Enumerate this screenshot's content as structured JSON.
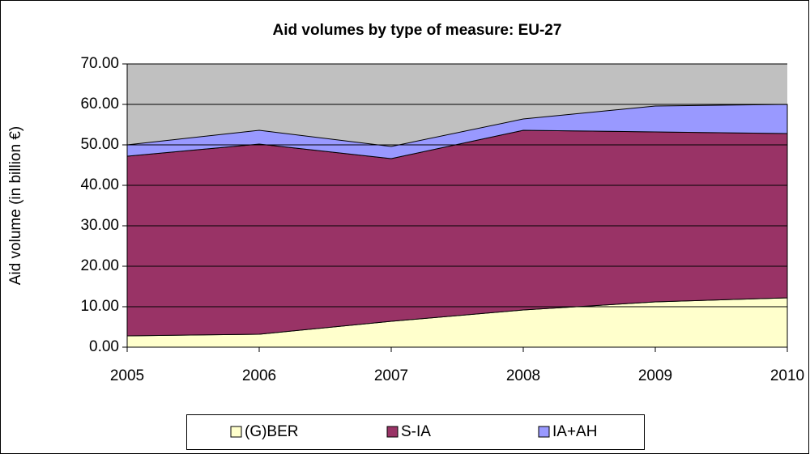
{
  "chart_data": {
    "type": "stacked_area",
    "title": "Aid volumes by type of measure: EU-27",
    "y_label": "Aid volume (in billion €)",
    "x": [
      2005,
      2006,
      2007,
      2008,
      2009,
      2010
    ],
    "xlim": [
      2005,
      2010
    ],
    "xticks": [
      2005,
      2006,
      2007,
      2008,
      2009,
      2010
    ],
    "ylim": [
      0,
      70
    ],
    "yticks": [
      {
        "value": 0,
        "label": "0.00"
      },
      {
        "value": 10,
        "label": "10.00"
      },
      {
        "value": 20,
        "label": "20.00"
      },
      {
        "value": 30,
        "label": "30.00"
      },
      {
        "value": 40,
        "label": "40.00"
      },
      {
        "value": 50,
        "label": "50.00"
      },
      {
        "value": 60,
        "label": "60.00"
      },
      {
        "value": 70,
        "label": "70.00"
      }
    ],
    "grid": true,
    "legend": "bottom",
    "series": [
      {
        "name": "(G)BER",
        "color": "#ffffcc",
        "values": [
          2.8,
          3.2,
          6.4,
          9.2,
          11.2,
          12.2
        ]
      },
      {
        "name": "S-IA",
        "color": "#993366",
        "values": [
          44.4,
          47.0,
          40.2,
          44.4,
          42.0,
          40.6
        ]
      },
      {
        "name": "IA+AH",
        "color": "#9999ff",
        "values": [
          2.8,
          3.4,
          3.0,
          2.8,
          6.4,
          7.2
        ]
      }
    ]
  }
}
